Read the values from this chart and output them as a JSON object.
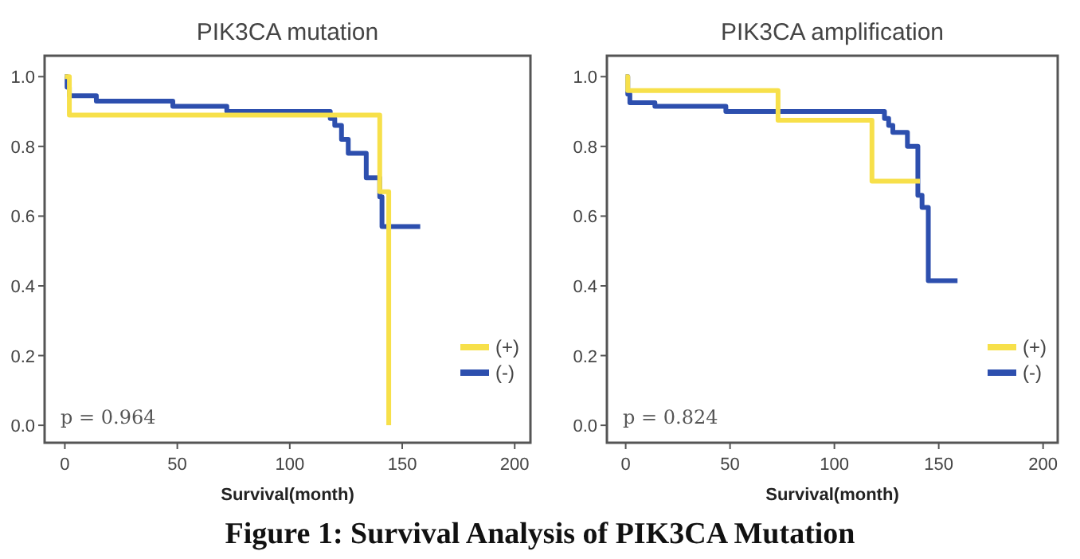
{
  "chart_data": [
    {
      "type": "step",
      "title": "PIK3CA mutation",
      "xlabel": "Survival(month)",
      "xlim": [
        -9,
        207
      ],
      "xticks": [
        0,
        50,
        100,
        150,
        200
      ],
      "ylim": [
        -0.05,
        1.06
      ],
      "yticks": [
        {
          "value": 0,
          "label": "0.0"
        },
        {
          "value": 0.2,
          "label": "0.2"
        },
        {
          "value": 0.4,
          "label": "0.4"
        },
        {
          "value": 0.6,
          "label": "0.6"
        },
        {
          "value": 0.8,
          "label": "0.8"
        },
        {
          "value": 1,
          "label": "1.0"
        }
      ],
      "grid": false,
      "legend": "bottom right",
      "annotations": [
        "p = 0.964",
        "Figure 1: Survival Analysis of PIK3CA Mutation"
      ],
      "series": [
        {
          "name": "(+)",
          "color": "#f7e04a",
          "x": [
            0,
            2,
            140,
            144,
            144
          ],
          "values": [
            1,
            0.89,
            0.67,
            0,
            0
          ]
        },
        {
          "name": "(-)",
          "color": "#2d4fae",
          "x": [
            0,
            1,
            2,
            14,
            48,
            72,
            118,
            120,
            123,
            126,
            134,
            140,
            141,
            158
          ],
          "values": [
            1,
            0.97,
            0.945,
            0.93,
            0.915,
            0.9,
            0.88,
            0.86,
            0.82,
            0.78,
            0.71,
            0.655,
            0.57,
            0.57
          ]
        }
      ]
    },
    {
      "type": "step",
      "title": "PIK3CA amplification",
      "xlabel": "Survival(month)",
      "xlim": [
        -9,
        207
      ],
      "xticks": [
        0,
        50,
        100,
        150,
        200
      ],
      "ylim": [
        -0.05,
        1.06
      ],
      "yticks": [
        {
          "value": 0,
          "label": "0.0"
        },
        {
          "value": 0.2,
          "label": "0.2"
        },
        {
          "value": 0.4,
          "label": "0.4"
        },
        {
          "value": 0.6,
          "label": "0.6"
        },
        {
          "value": 0.8,
          "label": "0.8"
        },
        {
          "value": 1,
          "label": "1.0"
        }
      ],
      "grid": false,
      "legend": "bottom right",
      "annotations": [
        "p = 0.824"
      ],
      "series": [
        {
          "name": "(+)",
          "color": "#f7e04a",
          "x": [
            0,
            1,
            73,
            118,
            141
          ],
          "values": [
            1,
            0.96,
            0.875,
            0.7,
            0.7
          ]
        },
        {
          "name": "(-)",
          "color": "#2d4fae",
          "x": [
            0,
            1,
            2,
            14,
            48,
            124,
            126,
            128,
            135,
            140,
            142,
            145,
            159
          ],
          "values": [
            1,
            0.95,
            0.925,
            0.915,
            0.9,
            0.88,
            0.86,
            0.84,
            0.8,
            0.66,
            0.625,
            0.415,
            0.415
          ]
        }
      ]
    }
  ]
}
